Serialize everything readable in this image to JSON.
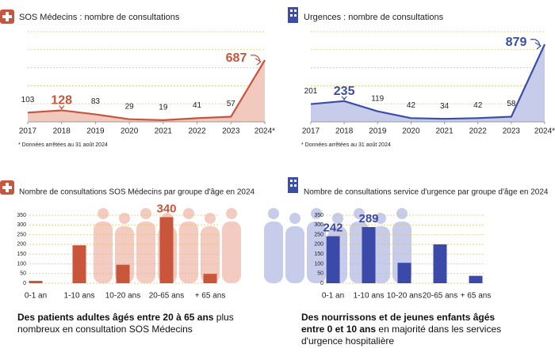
{
  "chart_data": [
    {
      "type": "line",
      "title": "SOS Médecins : nombre de consultations",
      "color": "#c8553d",
      "fill": "#f2cabd",
      "categories": [
        "2017",
        "2018",
        "2019",
        "2020",
        "2021",
        "2022",
        "2023",
        "2024*"
      ],
      "values": [
        103,
        128,
        83,
        29,
        19,
        41,
        57,
        687
      ],
      "highlight": [
        1,
        7
      ],
      "label_all": true,
      "note": "* Données arrêtées au 31 août 2024"
    },
    {
      "type": "line",
      "title": "Urgences : nombre de consultations",
      "color": "#3a4ea8",
      "fill": "#c6cce9",
      "categories": [
        "2017",
        "2018",
        "2019",
        "2020",
        "2021",
        "2022",
        "2023",
        "2024*"
      ],
      "values": [
        201,
        235,
        119,
        42,
        34,
        42,
        58,
        879
      ],
      "highlight": [
        1,
        7
      ],
      "label_all": true,
      "note": "* Données arrêtées au 31 août 2024"
    },
    {
      "type": "bar",
      "title": "Nombre de consultations SOS Médecins par groupe d'âge en 2024",
      "color": "#c9553a",
      "categories": [
        "0-1 an",
        "1-10 ans",
        "10-20 ans",
        "20-65 ans",
        "+ 65 ans"
      ],
      "values": [
        12,
        195,
        95,
        340,
        48
      ],
      "highlight": [
        3
      ],
      "label_all": false,
      "ylim": [
        0,
        350
      ],
      "yticks": [
        0,
        50,
        100,
        150,
        200,
        250,
        300,
        350
      ],
      "grid": true
    },
    {
      "type": "bar",
      "title": "Nombre de consultations service d'urgence par groupe d'âge en 2024",
      "color": "#3b49a8",
      "categories": [
        "0-1 an",
        "1-10 ans",
        "10-20 ans",
        "20-65 ans",
        "+ 65 ans"
      ],
      "values": [
        242,
        289,
        105,
        200,
        38
      ],
      "highlight": [
        0,
        1
      ],
      "label_all": false,
      "ylim": [
        0,
        350
      ],
      "yticks": [
        0,
        50,
        100,
        150,
        200,
        250,
        300,
        350
      ],
      "grid": true
    }
  ],
  "captions": [
    {
      "bold": "Des patients adultes âgés entre 20 à 65 ans",
      "text": "plus nombreux en consultation SOS Médecins"
    },
    {
      "bold": "Des nourrissons et de jeunes enfants âgés entre 0 et 10 ans",
      "text": "en majorité dans les services d'urgence hospitalière"
    }
  ]
}
